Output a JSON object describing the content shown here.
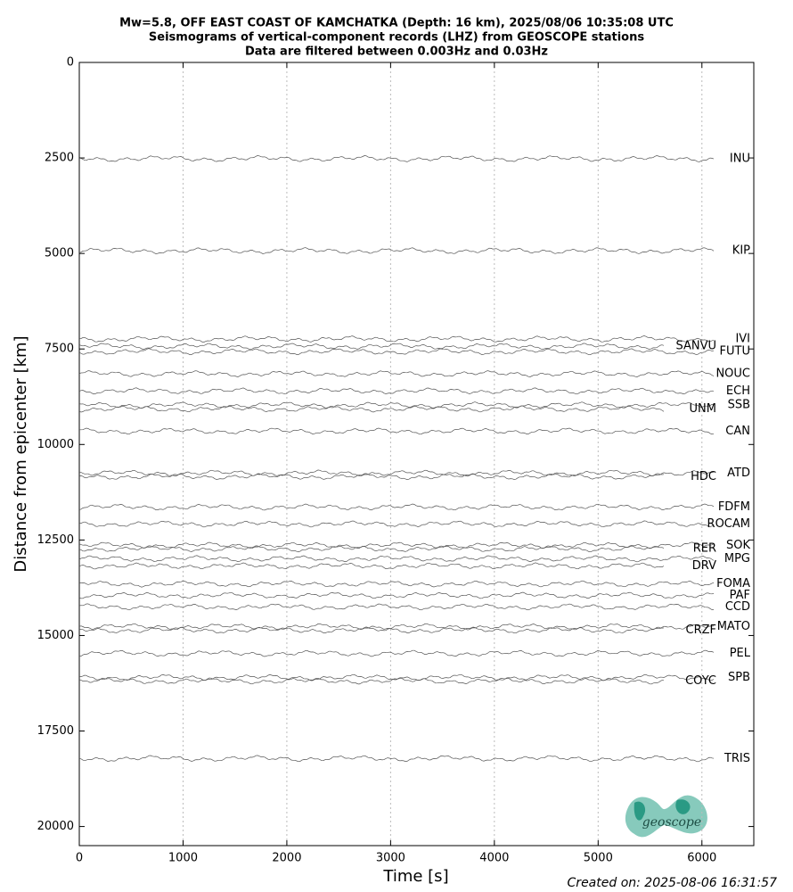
{
  "chart_data": {
    "type": "seismogram",
    "title_lines": [
      "Mw=5.8, OFF EAST COAST OF KAMCHATKA (Depth: 16 km), 2025/08/06 10:35:08 UTC",
      "Seismograms of vertical-component records (LHZ) from GEOSCOPE stations",
      "Data are filtered between 0.003Hz and 0.03Hz"
    ],
    "x_label": "Time [s]",
    "y_label": "Distance from epicenter [km]",
    "xlim": [
      0,
      6500
    ],
    "ylim": [
      20500,
      0
    ],
    "xticks": [
      0,
      1000,
      2000,
      3000,
      4000,
      5000,
      6000
    ],
    "yticks": [
      0,
      2500,
      5000,
      7500,
      10000,
      12500,
      15000,
      17500,
      20000
    ],
    "grid": "x",
    "color": "#555555",
    "stations": [
      "INU",
      "KIP",
      "IVI",
      "SANVU",
      "FUTU",
      "NOUC",
      "ECH",
      "SSB",
      "UNM",
      "CAN",
      "ATD",
      "HDC",
      "FDFM",
      "ROCAM",
      "SOK",
      "RER",
      "MPG",
      "DRV",
      "FOMA",
      "PAF",
      "CCD",
      "MATO",
      "CRZF",
      "PEL",
      "SPB",
      "COYC",
      "TRIS"
    ],
    "distances": [
      2520,
      4930,
      7240,
      7430,
      7570,
      8150,
      8600,
      8970,
      9070,
      9650,
      10750,
      10840,
      11640,
      12080,
      12640,
      12730,
      12990,
      13180,
      13650,
      13950,
      14250,
      14770,
      14860,
      15470,
      16100,
      16190,
      18220
    ],
    "footer": "Created on: 2025-08-06 16:31:57",
    "logo": "geoscope"
  }
}
